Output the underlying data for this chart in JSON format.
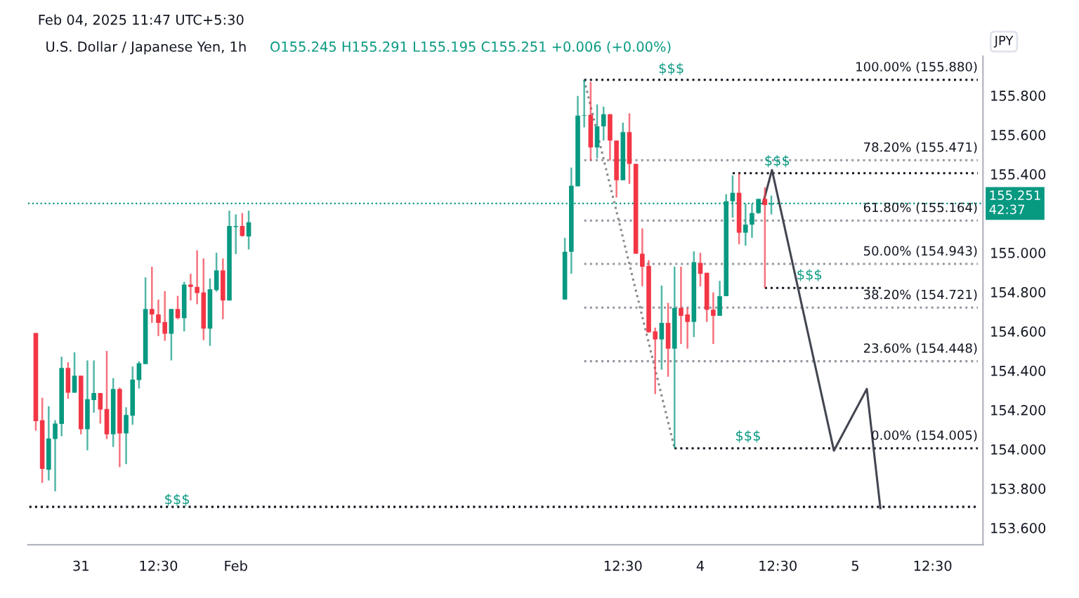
{
  "chart_data": {
    "type": "candlestick",
    "title": "U.S. Dollar / Japanese Yen, 1h",
    "subtitle": "O155.245 H155.291 L155.195 C155.251 +0.006 (+0.00%)",
    "ylabel": "JPY",
    "x": [
      "2025-01-30T17:30",
      "2025-01-30T18:30",
      "2025-01-30T19:30",
      "2025-01-30T20:30",
      "2025-01-30T21:30",
      "2025-01-30T22:30",
      "2025-01-30T23:30",
      "2025-01-31T00:30",
      "2025-01-31T01:30",
      "2025-01-31T02:30",
      "2025-01-31T03:30",
      "2025-01-31T04:30",
      "2025-01-31T05:30",
      "2025-01-31T06:30",
      "2025-01-31T07:30",
      "2025-01-31T08:30",
      "2025-01-31T09:30",
      "2025-01-31T10:30",
      "2025-01-31T11:30",
      "2025-01-31T12:30",
      "2025-01-31T13:30",
      "2025-01-31T14:30",
      "2025-01-31T15:30",
      "2025-01-31T16:30",
      "2025-01-31T17:30",
      "2025-01-31T18:30",
      "2025-01-31T19:30",
      "2025-01-31T20:30",
      "2025-01-31T21:30",
      "2025-01-31T22:30",
      "2025-01-31T23:30",
      "2025-02-01T00:30",
      "2025-02-01T01:30",
      "2025-02-01T02:30",
      "2025-02-03T03:30",
      "2025-02-03T04:30",
      "2025-02-03T05:30",
      "2025-02-03T06:30",
      "2025-02-03T07:30",
      "2025-02-03T08:30",
      "2025-02-03T09:30",
      "2025-02-03T10:30",
      "2025-02-03T11:30",
      "2025-02-03T12:30",
      "2025-02-03T13:30",
      "2025-02-03T14:30",
      "2025-02-03T15:30",
      "2025-02-03T16:30",
      "2025-02-03T17:30",
      "2025-02-03T18:30",
      "2025-02-03T19:30",
      "2025-02-03T20:30",
      "2025-02-03T21:30",
      "2025-02-03T22:30",
      "2025-02-03T23:30",
      "2025-02-04T00:30",
      "2025-02-04T01:30",
      "2025-02-04T02:30",
      "2025-02-04T03:30",
      "2025-02-04T04:30",
      "2025-02-04T05:30",
      "2025-02-04T06:30",
      "2025-02-04T07:30",
      "2025-02-04T08:30",
      "2025-02-04T09:30",
      "2025-02-04T10:30",
      "2025-02-04T11:30"
    ],
    "ohlc": [
      [
        154.591,
        154.591,
        154.095,
        154.143
      ],
      [
        154.148,
        154.262,
        153.829,
        153.9
      ],
      [
        153.896,
        154.219,
        153.841,
        154.055
      ],
      [
        154.052,
        154.148,
        153.786,
        154.131
      ],
      [
        154.129,
        154.471,
        154.066,
        154.414
      ],
      [
        154.414,
        154.443,
        154.257,
        154.288
      ],
      [
        154.288,
        154.493,
        154.288,
        154.374
      ],
      [
        154.374,
        154.374,
        154.076,
        154.102
      ],
      [
        154.102,
        154.452,
        153.995,
        154.255
      ],
      [
        154.25,
        154.452,
        154.186,
        154.286
      ],
      [
        154.286,
        154.286,
        154.131,
        154.202
      ],
      [
        154.205,
        154.5,
        154.052,
        154.076
      ],
      [
        154.076,
        154.362,
        154.012,
        154.307
      ],
      [
        154.307,
        154.314,
        153.909,
        154.081
      ],
      [
        154.081,
        154.214,
        153.924,
        154.174
      ],
      [
        154.171,
        154.421,
        154.124,
        154.355
      ],
      [
        154.352,
        154.448,
        154.309,
        154.438
      ],
      [
        154.433,
        154.874,
        154.433,
        154.714
      ],
      [
        154.714,
        154.929,
        154.643,
        154.686
      ],
      [
        154.686,
        154.762,
        154.576,
        154.643
      ],
      [
        154.648,
        154.805,
        154.552,
        154.588
      ],
      [
        154.588,
        154.714,
        154.452,
        154.714
      ],
      [
        154.714,
        154.781,
        154.662,
        154.667
      ],
      [
        154.667,
        154.852,
        154.6,
        154.838
      ],
      [
        154.838,
        154.893,
        154.757,
        154.826
      ],
      [
        154.826,
        155.012,
        154.738,
        154.795
      ],
      [
        154.798,
        154.971,
        154.555,
        154.614
      ],
      [
        154.614,
        154.869,
        154.526,
        154.814
      ],
      [
        154.81,
        155.0,
        154.802,
        154.91
      ],
      [
        154.91,
        154.971,
        154.662,
        154.757
      ],
      [
        154.757,
        155.214,
        154.757,
        155.136
      ],
      [
        155.131,
        155.195,
        154.993,
        155.136
      ],
      [
        155.136,
        155.202,
        155.081,
        155.086
      ],
      [
        155.083,
        155.214,
        155.017,
        155.155
      ],
      [
        154.762,
        155.076,
        154.762,
        155.005
      ],
      [
        155.005,
        155.433,
        154.893,
        155.341
      ],
      [
        155.338,
        155.798,
        155.338,
        155.698
      ],
      [
        155.698,
        155.88,
        155.638,
        155.7
      ],
      [
        155.702,
        155.87,
        155.469,
        155.536
      ],
      [
        155.536,
        155.755,
        155.481,
        155.643
      ],
      [
        155.643,
        155.743,
        155.571,
        155.705
      ],
      [
        155.705,
        155.705,
        155.469,
        155.571
      ],
      [
        155.571,
        155.571,
        155.281,
        155.369
      ],
      [
        155.369,
        155.662,
        155.369,
        155.614
      ],
      [
        155.614,
        155.709,
        155.35,
        155.452
      ],
      [
        155.452,
        155.452,
        154.995,
        154.995
      ],
      [
        154.995,
        155.124,
        154.829,
        154.929
      ],
      [
        154.933,
        154.962,
        154.595,
        154.595
      ],
      [
        154.6,
        154.619,
        154.281,
        154.559
      ],
      [
        154.559,
        154.833,
        154.405,
        154.643
      ],
      [
        154.643,
        154.745,
        154.369,
        154.512
      ],
      [
        154.512,
        154.929,
        154.005,
        154.719
      ],
      [
        154.719,
        154.929,
        154.536,
        154.679
      ],
      [
        154.686,
        154.719,
        154.512,
        154.648
      ],
      [
        154.648,
        155.007,
        154.571,
        154.952
      ],
      [
        154.948,
        155.0,
        154.829,
        154.893
      ],
      [
        154.898,
        154.898,
        154.648,
        154.71
      ],
      [
        154.71,
        154.798,
        154.536,
        154.679
      ],
      [
        154.679,
        154.857,
        154.679,
        154.779
      ],
      [
        154.779,
        155.298,
        154.779,
        155.262
      ],
      [
        155.262,
        155.393,
        155.179,
        155.305
      ],
      [
        155.305,
        155.405,
        155.043,
        155.102
      ],
      [
        155.102,
        155.25,
        155.036,
        155.143
      ],
      [
        155.143,
        155.25,
        155.076,
        155.202
      ],
      [
        155.202,
        155.274,
        155.198,
        155.274
      ],
      [
        155.274,
        155.333,
        154.821,
        155.243
      ],
      [
        155.245,
        155.291,
        155.195,
        155.251
      ]
    ],
    "series": [
      {
        "type": "line",
        "x": [
          "2025-02-03T06:30",
          "2025-02-03T20:30"
        ],
        "values": [
          155.88,
          154.005
        ],
        "color": "#888888",
        "line_style": "dotted"
      },
      {
        "type": "line",
        "x": [
          "2025-02-03T06:30",
          "2025-02-05T19:30"
        ],
        "values": [
          155.88,
          155.88
        ],
        "color": "#131722",
        "line_style": "dotted"
      },
      {
        "type": "line",
        "x": [
          "2025-02-03T06:30",
          "2025-02-05T19:30"
        ],
        "values": [
          155.471,
          155.471
        ],
        "color": "#9598a1",
        "line_style": "dotted"
      },
      {
        "type": "line",
        "x": [
          "2025-02-03T06:30",
          "2025-02-05T19:30"
        ],
        "values": [
          155.164,
          155.164
        ],
        "color": "#9598a1",
        "line_style": "dotted"
      },
      {
        "type": "line",
        "x": [
          "2025-02-03T06:30",
          "2025-02-05T19:30"
        ],
        "values": [
          154.943,
          154.943
        ],
        "color": "#9598a1",
        "line_style": "dotted"
      },
      {
        "type": "line",
        "x": [
          "2025-02-03T06:30",
          "2025-02-05T19:30"
        ],
        "values": [
          154.721,
          154.721
        ],
        "color": "#9598a1",
        "line_style": "dotted"
      },
      {
        "type": "line",
        "x": [
          "2025-02-03T06:30",
          "2025-02-05T19:30"
        ],
        "values": [
          154.448,
          154.448
        ],
        "color": "#9598a1",
        "line_style": "dotted"
      },
      {
        "type": "line",
        "x": [
          "2025-02-03T20:30",
          "2025-02-05T19:30"
        ],
        "values": [
          154.005,
          154.005
        ],
        "color": "#131722",
        "line_style": "dotted"
      },
      {
        "type": "line",
        "x": [
          "2025-02-04T05:30",
          "2025-02-05T19:30"
        ],
        "values": [
          155.405,
          155.405
        ],
        "color": "#131722",
        "line_style": "dotted"
      },
      {
        "type": "line",
        "x": [
          "2025-02-04T10:30",
          "2025-02-05T04:30"
        ],
        "values": [
          154.821,
          154.821
        ],
        "color": "#131722",
        "line_style": "dotted"
      },
      {
        "type": "line",
        "x": [
          "2025-01-30T16:30",
          "2025-02-05T19:30"
        ],
        "values": [
          153.707,
          153.707
        ],
        "color": "#131722",
        "line_style": "dotted"
      },
      {
        "type": "line",
        "x": [
          "2025-02-04T10:12",
          "2025-02-04T11:36",
          "2025-02-04T21:12",
          "2025-02-05T02:18",
          "2025-02-05T04:24"
        ],
        "values": [
          155.25,
          155.421,
          153.993,
          154.307,
          153.7
        ],
        "color": "#434651",
        "line_style": "solid"
      }
    ],
    "ref_lines": [
      {
        "axis": "y",
        "value": 155.251,
        "label": "155.251\n42:37",
        "color": "#089981",
        "line_style": "dotted"
      }
    ],
    "annotations": [
      {
        "text": "100.00% (155.880)",
        "x": "2025-02-05T19:30",
        "y": 155.88
      },
      {
        "text": "78.20% (155.471)",
        "x": "2025-02-05T19:30",
        "y": 155.471
      },
      {
        "text": "61.80% (155.164)",
        "x": "2025-02-05T19:30",
        "y": 155.164
      },
      {
        "text": "50.00% (154.943)",
        "x": "2025-02-05T19:30",
        "y": 154.943
      },
      {
        "text": "38.20% (154.721)",
        "x": "2025-02-05T19:30",
        "y": 154.721
      },
      {
        "text": "23.60% (154.448)",
        "x": "2025-02-05T19:30",
        "y": 154.448
      },
      {
        "text": "0.00% (154.005)",
        "x": "2025-02-05T19:30",
        "y": 154.005
      },
      {
        "text": "$$$",
        "x": "2025-02-03T20:00",
        "y": 155.9
      },
      {
        "text": "$$$",
        "x": "2025-02-04T12:24",
        "y": 155.43
      },
      {
        "text": "$$$",
        "x": "2025-02-04T17:24",
        "y": 154.85
      },
      {
        "text": "$$$",
        "x": "2025-02-04T07:54",
        "y": 154.03
      },
      {
        "text": "$$$",
        "x": "2025-01-31T15:24",
        "y": 153.707
      },
      "Feb 04, 2025 11:47 UTC+5:30"
    ],
    "xlim": [
      "2025-01-30T16:18",
      "2025-02-05T20:18"
    ],
    "ylim": [
      153.514,
      156.0
    ],
    "xticks": [
      {
        "value": "2025-01-31T00:30",
        "label": "31"
      },
      {
        "value": "2025-01-31T12:30",
        "label": "12:30"
      },
      {
        "value": "2025-02-01T00:30",
        "label": "Feb"
      },
      {
        "value": "2025-02-03T12:30",
        "label": "12:30"
      },
      {
        "value": "2025-02-04T00:30",
        "label": "4"
      },
      {
        "value": "2025-02-04T12:30",
        "label": "12:30"
      },
      {
        "value": "2025-02-05T00:30",
        "label": "5"
      },
      {
        "value": "2025-02-05T12:30",
        "label": "12:30"
      }
    ],
    "yticks": [
      {
        "value": 153.6,
        "label": "153.600"
      },
      {
        "value": 153.8,
        "label": "153.800"
      },
      {
        "value": 154.0,
        "label": "154.000"
      },
      {
        "value": 154.2,
        "label": "154.200"
      },
      {
        "value": 154.4,
        "label": "154.400"
      },
      {
        "value": 154.6,
        "label": "154.600"
      },
      {
        "value": 154.8,
        "label": "154.800"
      },
      {
        "value": 155.0,
        "label": "155.000"
      },
      {
        "value": 155.4,
        "label": "155.400"
      },
      {
        "value": 155.6,
        "label": "155.600"
      },
      {
        "value": 155.8,
        "label": "155.800"
      }
    ],
    "grid": false,
    "legend": false
  }
}
